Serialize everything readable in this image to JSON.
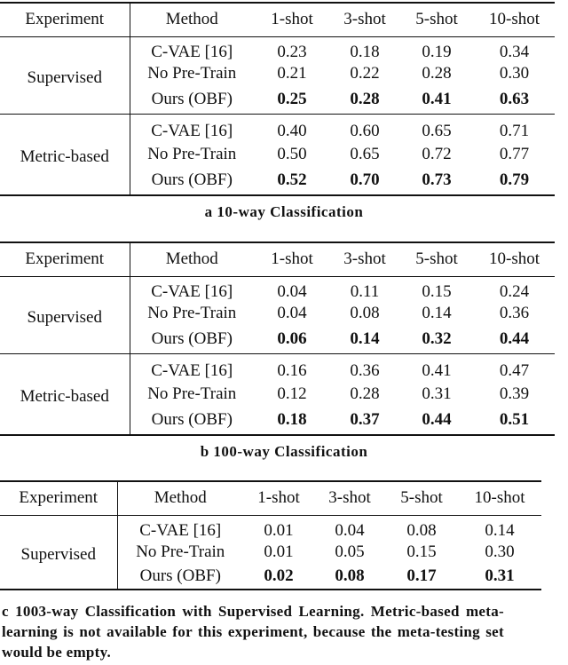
{
  "headers": [
    "Experiment",
    "Method",
    "1-shot",
    "3-shot",
    "5-shot",
    "10-shot"
  ],
  "tables": [
    {
      "caption": "a 10-way Classification",
      "groups": [
        {
          "experiment": "Supervised",
          "rows": [
            {
              "method": "C-VAE [16]",
              "values": [
                "0.23",
                "0.18",
                "0.19",
                "0.34"
              ]
            },
            {
              "method": "No Pre-Train",
              "values": [
                "0.21",
                "0.22",
                "0.28",
                "0.30"
              ]
            },
            {
              "method": "Ours (OBF)",
              "values": [
                "0.25",
                "0.28",
                "0.41",
                "0.63"
              ]
            }
          ]
        },
        {
          "experiment": "Metric-based",
          "rows": [
            {
              "method": "C-VAE [16]",
              "values": [
                "0.40",
                "0.60",
                "0.65",
                "0.71"
              ]
            },
            {
              "method": "No Pre-Train",
              "values": [
                "0.50",
                "0.65",
                "0.72",
                "0.77"
              ]
            },
            {
              "method": "Ours (OBF)",
              "values": [
                "0.52",
                "0.70",
                "0.73",
                "0.79"
              ]
            }
          ]
        }
      ]
    },
    {
      "caption": "b 100-way Classification",
      "groups": [
        {
          "experiment": "Supervised",
          "rows": [
            {
              "method": "C-VAE [16]",
              "values": [
                "0.04",
                "0.11",
                "0.15",
                "0.24"
              ]
            },
            {
              "method": "No Pre-Train",
              "values": [
                "0.04",
                "0.08",
                "0.14",
                "0.36"
              ]
            },
            {
              "method": "Ours (OBF)",
              "values": [
                "0.06",
                "0.14",
                "0.32",
                "0.44"
              ]
            }
          ]
        },
        {
          "experiment": "Metric-based",
          "rows": [
            {
              "method": "C-VAE [16]",
              "values": [
                "0.16",
                "0.36",
                "0.41",
                "0.47"
              ]
            },
            {
              "method": "No Pre-Train",
              "values": [
                "0.12",
                "0.28",
                "0.31",
                "0.39"
              ]
            },
            {
              "method": "Ours (OBF)",
              "values": [
                "0.18",
                "0.37",
                "0.44",
                "0.51"
              ]
            }
          ]
        }
      ]
    },
    {
      "caption": "c 1003-way Classification with Supervised Learning. Metric-based meta-learning is not available for this experiment, because the meta-testing set would be empty.",
      "groups": [
        {
          "experiment": "Supervised",
          "rows": [
            {
              "method": "C-VAE [16]",
              "values": [
                "0.01",
                "0.04",
                "0.08",
                "0.14"
              ]
            },
            {
              "method": "No Pre-Train",
              "values": [
                "0.01",
                "0.05",
                "0.15",
                "0.30"
              ]
            },
            {
              "method": "Ours (OBF)",
              "values": [
                "0.02",
                "0.08",
                "0.17",
                "0.31"
              ]
            }
          ]
        }
      ]
    }
  ]
}
